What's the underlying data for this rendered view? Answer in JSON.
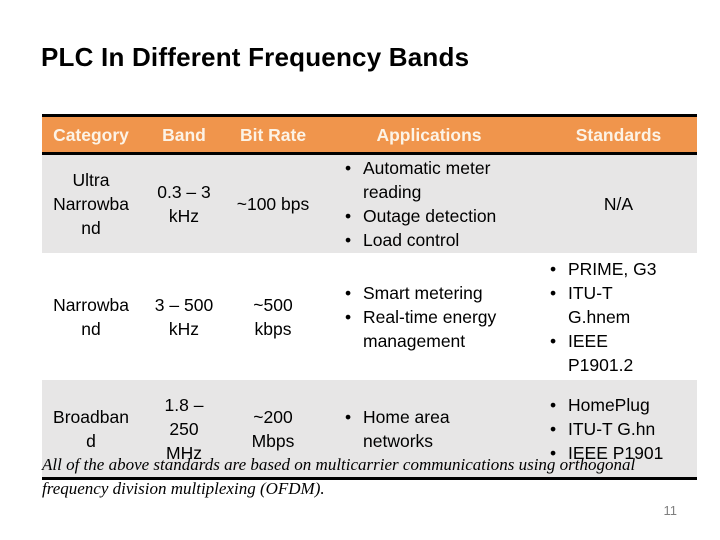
{
  "slide": {
    "title": "PLC In Different Frequency Bands",
    "page_number": "11",
    "footnote": "All of the above standards are based on multicarrier communications using orthogonal\nfrequency division multiplexing (OFDM)."
  },
  "colors": {
    "header_bg": "#F0954C",
    "header_text": "#FCF3E6",
    "alt_row_bg": "#E7E6E6",
    "table_border": "#000000",
    "page_number_text": "#7f7f7f"
  },
  "table": {
    "headers": [
      "Category",
      "Band",
      "Bit Rate",
      "Applications",
      "Standards"
    ],
    "rows": [
      {
        "category": "Ultra\nNarrowba\nnd",
        "band": "0.3 – 3\nkHz",
        "bit_rate": "~100 bps",
        "applications": [
          "Automatic meter\nreading",
          "Outage detection",
          "Load control"
        ],
        "standards_na": "N/A"
      },
      {
        "category": "Narrowba\nnd",
        "band": "3 – 500\nkHz",
        "bit_rate": "~500\nkbps",
        "applications": [
          "Smart metering",
          "Real-time energy\nmanagement"
        ],
        "standards": [
          "PRIME, G3",
          "ITU-T\nG.hnem",
          "IEEE\nP1901.2"
        ]
      },
      {
        "category": "Broadban\nd",
        "band": "1.8 –\n250\nMHz",
        "bit_rate": "~200\nMbps",
        "applications": [
          "Home area\nnetworks"
        ],
        "standards": [
          "HomePlug",
          "ITU-T G.hn",
          "IEEE P1901"
        ]
      }
    ]
  }
}
